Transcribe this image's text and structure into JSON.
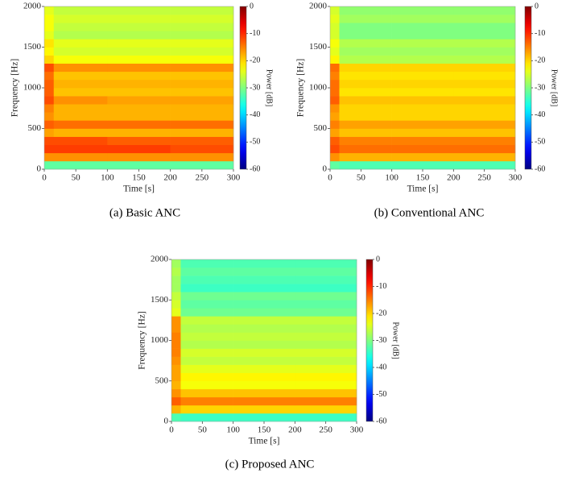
{
  "chart_data": [
    {
      "type": "heatmap",
      "caption": "(a) Basic ANC",
      "xlabel": "Time [s]",
      "ylabel": "Frequency [Hz]",
      "colorbar_label": "Power [dB]",
      "colormap": "jet",
      "xlim": [
        0,
        300
      ],
      "ylim": [
        0,
        2000
      ],
      "xticks": [
        0,
        50,
        100,
        150,
        200,
        250,
        300
      ],
      "yticks": [
        0,
        500,
        1000,
        1500,
        2000
      ],
      "clim": [
        -60,
        0
      ],
      "cticks": [
        0,
        -10,
        -20,
        -30,
        -40,
        -50,
        -60
      ],
      "xbins": [
        0,
        15,
        100,
        200,
        300
      ],
      "ybins": [
        0,
        100,
        200,
        300,
        400,
        500,
        600,
        700,
        800,
        900,
        1000,
        1100,
        1200,
        1300,
        1400,
        1500,
        1600,
        1700,
        1800,
        1900,
        2000
      ],
      "values": [
        [
          -32,
          -32,
          -32,
          -32
        ],
        [
          -16,
          -16,
          -16,
          -16
        ],
        [
          -11,
          -11,
          -11,
          -12
        ],
        [
          -12,
          -12,
          -13,
          -13
        ],
        [
          -17,
          -18,
          -18,
          -18
        ],
        [
          -13,
          -14,
          -14,
          -14
        ],
        [
          -16,
          -18,
          -18,
          -18
        ],
        [
          -15,
          -18,
          -18,
          -18
        ],
        [
          -12,
          -16,
          -17,
          -17
        ],
        [
          -13,
          -19,
          -19,
          -19
        ],
        [
          -13,
          -18,
          -18,
          -18
        ],
        [
          -14,
          -19,
          -19,
          -19
        ],
        [
          -12,
          -16,
          -16,
          -16
        ],
        [
          -20,
          -23,
          -23,
          -23
        ],
        [
          -22,
          -25,
          -25,
          -25
        ],
        [
          -21,
          -24,
          -24,
          -24
        ],
        [
          -24,
          -27,
          -27,
          -27
        ],
        [
          -23,
          -26,
          -26,
          -26
        ],
        [
          -23,
          -25,
          -25,
          -25
        ],
        [
          -24,
          -26,
          -26,
          -26
        ]
      ]
    },
    {
      "type": "heatmap",
      "caption": "(b) Conventional ANC",
      "xlabel": "Time [s]",
      "ylabel": "Frequency [Hz]",
      "colorbar_label": "Power [dB]",
      "colormap": "jet",
      "xlim": [
        0,
        300
      ],
      "ylim": [
        0,
        2000
      ],
      "xticks": [
        0,
        50,
        100,
        150,
        200,
        250,
        300
      ],
      "yticks": [
        0,
        500,
        1000,
        1500,
        2000
      ],
      "clim": [
        -60,
        0
      ],
      "cticks": [
        0,
        -10,
        -20,
        -30,
        -40,
        -50,
        -60
      ],
      "xbins": [
        0,
        15,
        100,
        200,
        300
      ],
      "ybins": [
        0,
        100,
        200,
        300,
        400,
        500,
        600,
        700,
        800,
        900,
        1000,
        1100,
        1200,
        1300,
        1400,
        1500,
        1600,
        1700,
        1800,
        1900,
        2000
      ],
      "values": [
        [
          -32,
          -33,
          -33,
          -33
        ],
        [
          -16,
          -18,
          -18,
          -18
        ],
        [
          -12,
          -14,
          -14,
          -14
        ],
        [
          -13,
          -15,
          -15,
          -15
        ],
        [
          -17,
          -19,
          -19,
          -19
        ],
        [
          -15,
          -17,
          -17,
          -17
        ],
        [
          -17,
          -20,
          -20,
          -20
        ],
        [
          -16,
          -20,
          -20,
          -20
        ],
        [
          -13,
          -19,
          -19,
          -19
        ],
        [
          -14,
          -21,
          -21,
          -21
        ],
        [
          -14,
          -20,
          -20,
          -20
        ],
        [
          -15,
          -21,
          -21,
          -21
        ],
        [
          -14,
          -20,
          -20,
          -20
        ],
        [
          -22,
          -27,
          -27,
          -27
        ],
        [
          -24,
          -28,
          -28,
          -28
        ],
        [
          -23,
          -27,
          -27,
          -27
        ],
        [
          -25,
          -30,
          -30,
          -30
        ],
        [
          -25,
          -30,
          -30,
          -30
        ],
        [
          -24,
          -28,
          -28,
          -28
        ],
        [
          -25,
          -29,
          -29,
          -29
        ]
      ]
    },
    {
      "type": "heatmap",
      "caption": "(c) Proposed ANC",
      "xlabel": "Time [s]",
      "ylabel": "Frequency [Hz]",
      "colorbar_label": "Power [dB]",
      "colormap": "jet",
      "xlim": [
        0,
        300
      ],
      "ylim": [
        0,
        2000
      ],
      "xticks": [
        0,
        50,
        100,
        150,
        200,
        250,
        300
      ],
      "yticks": [
        0,
        500,
        1000,
        1500,
        2000
      ],
      "clim": [
        -60,
        0
      ],
      "cticks": [
        0,
        -10,
        -20,
        -30,
        -40,
        -50,
        -60
      ],
      "xbins": [
        0,
        15,
        100,
        200,
        300
      ],
      "ybins": [
        0,
        100,
        200,
        300,
        400,
        500,
        600,
        700,
        800,
        900,
        1000,
        1100,
        1200,
        1300,
        1400,
        1500,
        1600,
        1700,
        1800,
        1900,
        2000
      ],
      "values": [
        [
          -33,
          -34,
          -34,
          -34
        ],
        [
          -18,
          -20,
          -20,
          -20
        ],
        [
          -13,
          -15,
          -15,
          -15
        ],
        [
          -16,
          -19,
          -19,
          -19
        ],
        [
          -18,
          -23,
          -23,
          -23
        ],
        [
          -17,
          -22,
          -22,
          -22
        ],
        [
          -17,
          -24,
          -24,
          -24
        ],
        [
          -16,
          -26,
          -26,
          -26
        ],
        [
          -15,
          -25,
          -25,
          -25
        ],
        [
          -15,
          -27,
          -27,
          -27
        ],
        [
          -15,
          -26,
          -26,
          -26
        ],
        [
          -16,
          -27,
          -27,
          -27
        ],
        [
          -16,
          -26,
          -26,
          -26
        ],
        [
          -24,
          -31,
          -31,
          -31
        ],
        [
          -25,
          -32,
          -32,
          -32
        ],
        [
          -26,
          -31,
          -31,
          -31
        ],
        [
          -28,
          -34,
          -34,
          -34
        ],
        [
          -28,
          -33,
          -33,
          -33
        ],
        [
          -27,
          -32,
          -32,
          -32
        ],
        [
          -28,
          -33,
          -33,
          -33
        ]
      ]
    }
  ]
}
